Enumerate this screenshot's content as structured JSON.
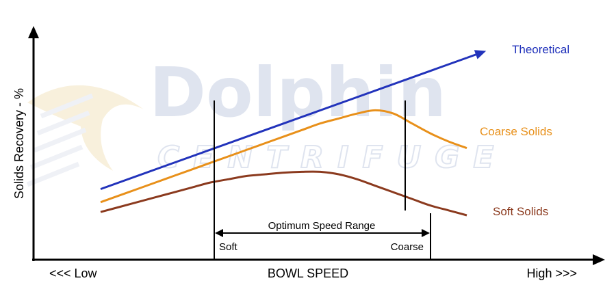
{
  "chart_data": {
    "type": "line",
    "ylabel": "Solids Recovery - %",
    "xlabel": "BOWL SPEED",
    "x_low_label": "<<< Low",
    "x_high_label": "High >>>",
    "grid": false,
    "x": [
      0,
      1,
      2,
      3,
      4,
      5,
      6,
      7,
      8,
      9,
      10,
      11,
      12,
      13,
      14,
      15,
      16,
      17,
      18,
      19,
      20
    ],
    "series": [
      {
        "name": "Theoretical",
        "color": "#2233bb",
        "values": [
          16,
          20,
          24,
          28,
          32,
          36,
          40,
          44,
          48,
          52,
          56,
          60,
          64,
          68,
          72,
          76,
          80,
          84,
          88,
          92,
          96
        ]
      },
      {
        "name": "Coarse Solids",
        "color": "#e8901a",
        "values": [
          8,
          12,
          16,
          20,
          24,
          28,
          32,
          36,
          40,
          44,
          48,
          52,
          56,
          59,
          62,
          64,
          62,
          56,
          50,
          45,
          41
        ]
      },
      {
        "name": "Soft Solids",
        "color": "#8b3a1e",
        "values": [
          2,
          5,
          8,
          11,
          14,
          17,
          20,
          22,
          24,
          25,
          26,
          26.5,
          26.5,
          25,
          22,
          18,
          14,
          10,
          6,
          3,
          0
        ]
      }
    ],
    "annotations": {
      "range_label": "Optimum Speed Range",
      "soft_label": "Soft",
      "coarse_label": "Coarse"
    }
  },
  "watermark": {
    "brand": "Dolphin",
    "sub": "CENTRIFUGE"
  }
}
